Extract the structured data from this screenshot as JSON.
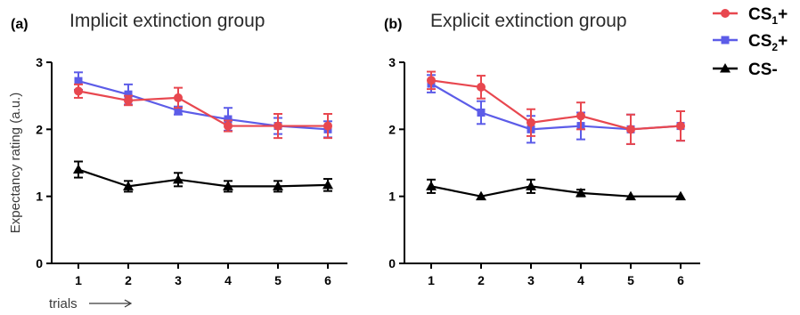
{
  "legend": {
    "items": [
      {
        "key": "cs1",
        "main": "CS",
        "sub": "1",
        "suffix": "+"
      },
      {
        "key": "cs2",
        "main": "CS",
        "sub": "2",
        "suffix": "+"
      },
      {
        "key": "csm",
        "main": "CS-",
        "sub": "",
        "suffix": ""
      }
    ]
  },
  "x_axis_label": "trials",
  "chart_data": [
    {
      "type": "line",
      "panel": "(a)",
      "title": "Implicit extinction group",
      "ylabel": "Expectancy rating (a.u.)",
      "xlabel": "trials",
      "x": [
        1,
        2,
        3,
        4,
        5,
        6
      ],
      "ylim": [
        0,
        3
      ],
      "yticks": [
        0,
        1,
        2,
        3
      ],
      "series": [
        {
          "key": "cs1",
          "color": "#e8474f",
          "marker": "circle",
          "values": [
            2.57,
            2.43,
            2.47,
            2.05,
            2.05,
            2.05
          ],
          "errors": [
            0.1,
            0.07,
            0.15,
            0.08,
            0.18,
            0.18
          ]
        },
        {
          "key": "cs2",
          "color": "#5c5ce8",
          "marker": "square",
          "values": [
            2.72,
            2.52,
            2.28,
            2.15,
            2.05,
            2.0
          ],
          "errors": [
            0.13,
            0.15,
            0.06,
            0.17,
            0.12,
            0.12
          ]
        },
        {
          "key": "csm",
          "color": "#000000",
          "marker": "triangle",
          "values": [
            1.4,
            1.15,
            1.25,
            1.15,
            1.15,
            1.17
          ],
          "errors": [
            0.12,
            0.08,
            0.1,
            0.08,
            0.08,
            0.09
          ]
        }
      ]
    },
    {
      "type": "line",
      "panel": "(b)",
      "title": "Explicit extinction group",
      "ylabel": "",
      "xlabel": "",
      "x": [
        1,
        2,
        3,
        4,
        5,
        6
      ],
      "ylim": [
        0,
        3
      ],
      "yticks": [
        0,
        1,
        2,
        3
      ],
      "series": [
        {
          "key": "cs1",
          "color": "#e8474f",
          "marker": "circle",
          "values": [
            2.73,
            2.63,
            2.1,
            2.2,
            2.0,
            2.05
          ],
          "errors": [
            0.13,
            0.17,
            0.2,
            0.2,
            0.22,
            0.22
          ]
        },
        {
          "key": "cs2",
          "color": "#5c5ce8",
          "marker": "square",
          "values": [
            2.68,
            2.25,
            2.0,
            2.05,
            2.0,
            2.05
          ],
          "errors": [
            0.13,
            0.17,
            0.2,
            0.2,
            0.22,
            0.22
          ]
        },
        {
          "key": "csm",
          "color": "#000000",
          "marker": "triangle",
          "values": [
            1.15,
            1.0,
            1.15,
            1.05,
            1.0,
            1.0
          ],
          "errors": [
            0.1,
            0.0,
            0.1,
            0.05,
            0.0,
            0.0
          ]
        }
      ]
    }
  ]
}
